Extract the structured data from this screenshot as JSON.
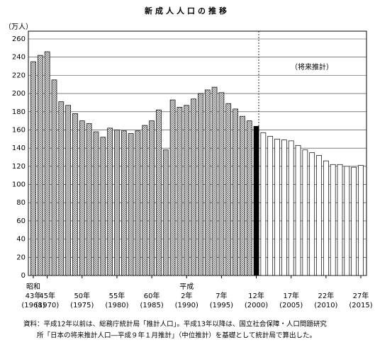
{
  "chart_data": {
    "type": "bar",
    "title": "新成人人口の推移",
    "y_unit_label": "（万人）",
    "annotation": "（将来推計）",
    "note": [
      "資料：平成12年以前は、総務庁統計局「推計人口」。平成13年以降は、国立社会保障・人口問題研究",
      "所「日本の将来推計人口―平成９年１月推計」（中位推計）を基礎として統計局で算出した。"
    ],
    "categories": [
      "昭和\n43年\n(1968)",
      null,
      "45年\n(1970)",
      null,
      null,
      null,
      null,
      "50年\n(1975)",
      null,
      null,
      null,
      null,
      "55年\n(1980)",
      null,
      null,
      null,
      null,
      "60年\n(1985)",
      null,
      null,
      null,
      null,
      "平成\n2年\n(1990)",
      null,
      null,
      null,
      null,
      "7年\n(1995)",
      null,
      null,
      null,
      null,
      "12年\n(2000)",
      null,
      null,
      null,
      null,
      "17年\n(2005)",
      null,
      null,
      null,
      null,
      "22年\n(2010)",
      null,
      null,
      null,
      null,
      "27年\n(2015)"
    ],
    "values": [
      235,
      242,
      246,
      215,
      191,
      187,
      178,
      170,
      167,
      158,
      152,
      162,
      160,
      159,
      156,
      159,
      165,
      170,
      182,
      138,
      193,
      185,
      187,
      194,
      200,
      204,
      207,
      201,
      189,
      183,
      175,
      170,
      164,
      157,
      153,
      150,
      149,
      148,
      143,
      138,
      135,
      132,
      126,
      122,
      122,
      120,
      119,
      121
    ],
    "colors": [
      "hatch",
      "hatch",
      "hatch",
      "hatch",
      "hatch",
      "hatch",
      "hatch",
      "hatch",
      "hatch",
      "hatch",
      "hatch",
      "hatch",
      "hatch",
      "hatch",
      "hatch",
      "hatch",
      "hatch",
      "hatch",
      "hatch",
      "hatch",
      "hatch",
      "hatch",
      "hatch",
      "hatch",
      "hatch",
      "hatch",
      "hatch",
      "hatch",
      "hatch",
      "hatch",
      "hatch",
      "hatch",
      "#000000",
      "#ffffff",
      "#ffffff",
      "#ffffff",
      "#ffffff",
      "#ffffff",
      "#ffffff",
      "#ffffff",
      "#ffffff",
      "#ffffff",
      "#ffffff",
      "#ffffff",
      "#ffffff",
      "#ffffff",
      "#ffffff",
      "#ffffff"
    ],
    "ylim": [
      0,
      260
    ],
    "yticks": [
      0,
      20,
      40,
      60,
      80,
      100,
      120,
      140,
      160,
      180,
      200,
      220,
      240,
      260
    ],
    "grid": true
  }
}
